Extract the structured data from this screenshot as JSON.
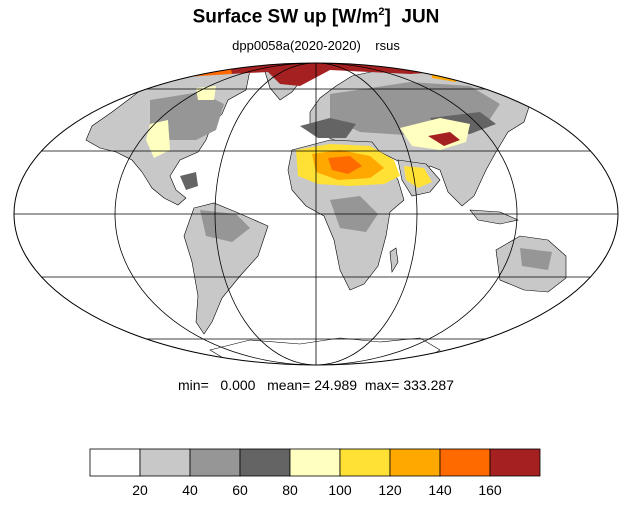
{
  "title": {
    "main": "Surface SW up [W/m",
    "sup": "2",
    "tail": "]  JUN"
  },
  "subtitle": "dpp0058a(2020-2020)    rsus",
  "stats": {
    "min_label": "min=",
    "min": "0.000",
    "mean_label": "mean=",
    "mean": "24.989",
    "max_label": "max=",
    "max": "333.287"
  },
  "map": {
    "projection": "mollweide",
    "ocean_color": "#ffffff",
    "land_base_color": "#c8c8c8",
    "grid_color": "#000000",
    "meridians_deg": [
      -120,
      -60,
      0,
      60,
      120
    ],
    "parallels_deg": [
      -60,
      -30,
      0,
      30,
      60
    ]
  },
  "colorbar": {
    "colors": [
      "#ffffff",
      "#c8c8c8",
      "#969696",
      "#646464",
      "#ffffc0",
      "#ffe135",
      "#ffa800",
      "#ff6a00",
      "#a52020"
    ],
    "labels": [
      "20",
      "40",
      "60",
      "80",
      "100",
      "120",
      "140",
      "160"
    ]
  }
}
